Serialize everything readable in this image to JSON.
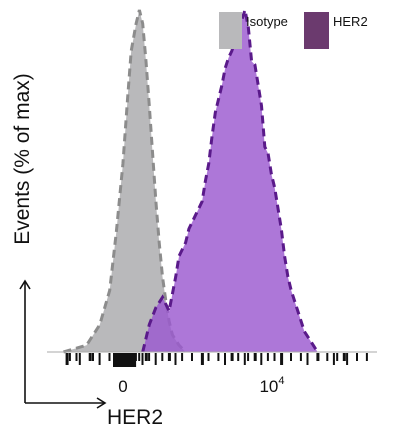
{
  "chart_data": {
    "type": "area",
    "title": "",
    "xlabel": "HER2",
    "ylabel": "Events (% of max)",
    "ylim": [
      0,
      100
    ],
    "x_scale": "biexponential",
    "x_ticks": [
      {
        "value": 0,
        "label": "0"
      },
      {
        "value": 10000,
        "label": "10⁴",
        "base": "10",
        "exponent": "4"
      }
    ],
    "legend": {
      "placement": "top-right",
      "entries": [
        {
          "label": "Isotype",
          "color": "#b9b9bb"
        },
        {
          "label": "HER2",
          "color": "#6b3a6e"
        }
      ]
    },
    "series": [
      {
        "name": "Isotype",
        "fill": "#b9b9bb",
        "stroke": "#8c8c8c",
        "points": [
          [
            0.05,
            0
          ],
          [
            0.12,
            2
          ],
          [
            0.16,
            8
          ],
          [
            0.19,
            18
          ],
          [
            0.21,
            35
          ],
          [
            0.23,
            55
          ],
          [
            0.245,
            75
          ],
          [
            0.255,
            88
          ],
          [
            0.27,
            96
          ],
          [
            0.28,
            100
          ],
          [
            0.29,
            96
          ],
          [
            0.3,
            85
          ],
          [
            0.31,
            72
          ],
          [
            0.32,
            58
          ],
          [
            0.33,
            44
          ],
          [
            0.34,
            32
          ],
          [
            0.35,
            22
          ],
          [
            0.36,
            15
          ],
          [
            0.37,
            9
          ],
          [
            0.38,
            5
          ],
          [
            0.4,
            2
          ],
          [
            0.42,
            0
          ]
        ]
      },
      {
        "name": "HER2",
        "fill": "#9b59d0",
        "stroke": "#5a1a8a",
        "points": [
          [
            0.29,
            0
          ],
          [
            0.31,
            8
          ],
          [
            0.33,
            13
          ],
          [
            0.35,
            16
          ],
          [
            0.36,
            14
          ],
          [
            0.37,
            12
          ],
          [
            0.39,
            22
          ],
          [
            0.4,
            28
          ],
          [
            0.42,
            32
          ],
          [
            0.43,
            36
          ],
          [
            0.44,
            38
          ],
          [
            0.45,
            40
          ],
          [
            0.46,
            42
          ],
          [
            0.47,
            44
          ],
          [
            0.48,
            50
          ],
          [
            0.49,
            55
          ],
          [
            0.5,
            63
          ],
          [
            0.51,
            70
          ],
          [
            0.52,
            74
          ],
          [
            0.53,
            78
          ],
          [
            0.54,
            83
          ],
          [
            0.55,
            86
          ],
          [
            0.56,
            88
          ],
          [
            0.57,
            91
          ],
          [
            0.58,
            94
          ],
          [
            0.59,
            97
          ],
          [
            0.6,
            100
          ],
          [
            0.61,
            95
          ],
          [
            0.62,
            85
          ],
          [
            0.63,
            84
          ],
          [
            0.64,
            78
          ],
          [
            0.65,
            72
          ],
          [
            0.66,
            60
          ],
          [
            0.67,
            58
          ],
          [
            0.68,
            52
          ],
          [
            0.69,
            48
          ],
          [
            0.7,
            42
          ],
          [
            0.71,
            36
          ],
          [
            0.72,
            28
          ],
          [
            0.73,
            22
          ],
          [
            0.74,
            18
          ],
          [
            0.76,
            12
          ],
          [
            0.78,
            6
          ],
          [
            0.8,
            3
          ],
          [
            0.82,
            0
          ]
        ]
      }
    ]
  }
}
